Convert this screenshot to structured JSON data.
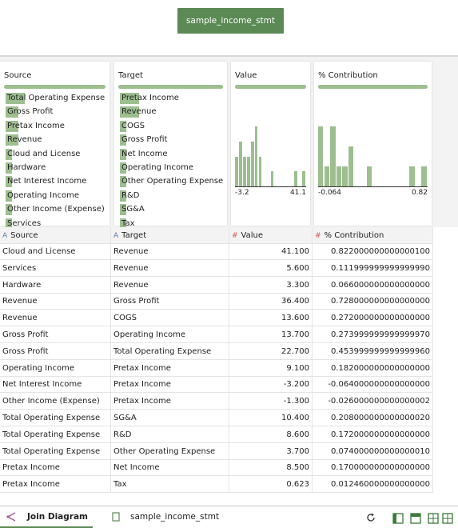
{
  "toolbar": {
    "dataset_button": "sample_income_stmt"
  },
  "profiles": [
    {
      "name": "Source",
      "type": "list",
      "items": [
        "Total Operating Expense",
        "Gross Profit",
        "Pretax Income",
        "Revenue",
        "Cloud and License",
        "Hardware",
        "Net Interest Income",
        "Operating Income",
        "Other Income (Expense)",
        "Services"
      ],
      "counts": [
        3,
        2,
        2,
        2,
        1,
        1,
        1,
        1,
        1,
        1
      ]
    },
    {
      "name": "Target",
      "type": "list",
      "items": [
        "Pretax Income",
        "Revenue",
        "COGS",
        "Gross Profit",
        "Net Income",
        "Operating Income",
        "Other Operating Expense",
        "R&D",
        "SG&A",
        "Tax"
      ],
      "counts": [
        3,
        3,
        1,
        1,
        1,
        1,
        1,
        1,
        1,
        1
      ]
    },
    {
      "name": "Value",
      "type": "histogram",
      "min": -3.2,
      "max": 41.1,
      "counts": [
        2,
        3,
        2,
        2,
        3,
        4,
        2,
        0,
        0,
        1,
        0,
        0,
        0,
        0,
        0,
        1,
        0,
        1
      ]
    },
    {
      "name": "% Contribution",
      "type": "histogram",
      "min": -0.064,
      "max": 0.82,
      "counts": [
        3,
        1,
        3,
        1,
        1,
        2,
        0,
        0,
        1,
        0,
        0,
        0,
        0,
        0,
        0,
        1,
        0,
        1
      ]
    }
  ],
  "table": {
    "columns": [
      {
        "icon": "A",
        "name": "Source"
      },
      {
        "icon": "A",
        "name": "Target"
      },
      {
        "icon": "#",
        "name": "Value"
      },
      {
        "icon": "#",
        "name": "% Contribution"
      }
    ],
    "rows": [
      [
        "Cloud and License",
        "Revenue",
        "41.100",
        "0.822000000000000100"
      ],
      [
        "Services",
        "Revenue",
        "5.600",
        "0.111999999999999990"
      ],
      [
        "Hardware",
        "Revenue",
        "3.300",
        "0.066000000000000000"
      ],
      [
        "Revenue",
        "Gross Profit",
        "36.400",
        "0.728000000000000000"
      ],
      [
        "Revenue",
        "COGS",
        "13.600",
        "0.272000000000000000"
      ],
      [
        "Gross Profit",
        "Operating Income",
        "13.700",
        "0.273999999999999970"
      ],
      [
        "Gross Profit",
        "Total Operating Expense",
        "22.700",
        "0.453999999999999960"
      ],
      [
        "Operating Income",
        "Pretax Income",
        "9.100",
        "0.182000000000000000"
      ],
      [
        "Net Interest Income",
        "Pretax Income",
        "-3.200",
        "-0.064000000000000000"
      ],
      [
        "Other Income (Expense)",
        "Pretax Income",
        "-1.300",
        "-0.026000000000000002"
      ],
      [
        "Total Operating Expense",
        "SG&A",
        "10.400",
        "0.208000000000000020"
      ],
      [
        "Total Operating Expense",
        "R&D",
        "8.600",
        "0.172000000000000000"
      ],
      [
        "Total Operating Expense",
        "Other Operating Expense",
        "3.700",
        "0.074000000000000010"
      ],
      [
        "Pretax Income",
        "Net Income",
        "8.500",
        "0.170000000000000000"
      ],
      [
        "Pretax Income",
        "Tax",
        "0.623",
        "0.012460000000000000"
      ]
    ]
  },
  "tabs": [
    {
      "label": "Join Diagram",
      "active": true
    },
    {
      "label": "sample_income_stmt",
      "active": false
    }
  ]
}
